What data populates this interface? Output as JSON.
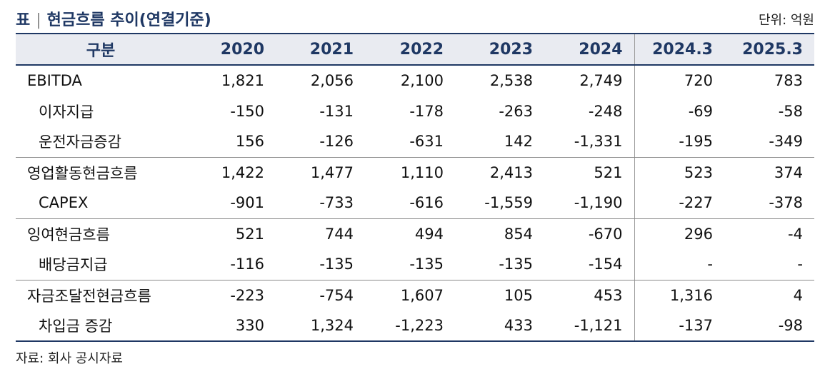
{
  "header": {
    "prefix": "표",
    "separator": "|",
    "title": "현금흐름 추이(연결기준)",
    "unit": "단위: 억원"
  },
  "table": {
    "columns": [
      "구분",
      "2020",
      "2021",
      "2022",
      "2023",
      "2024",
      "2024.3",
      "2025.3"
    ],
    "rows": [
      {
        "label": "EBITDA",
        "values": [
          "1,821",
          "2,056",
          "2,100",
          "2,538",
          "2,749",
          "720",
          "783"
        ]
      },
      {
        "label": "이자지급",
        "values": [
          "-150",
          "-131",
          "-178",
          "-263",
          "-248",
          "-69",
          "-58"
        ]
      },
      {
        "label": "운전자금증감",
        "values": [
          "156",
          "-126",
          "-631",
          "142",
          "-1,331",
          "-195",
          "-349"
        ]
      },
      {
        "label": "영업활동현금흐름",
        "values": [
          "1,422",
          "1,477",
          "1,110",
          "2,413",
          "521",
          "523",
          "374"
        ]
      },
      {
        "label": "CAPEX",
        "values": [
          "-901",
          "-733",
          "-616",
          "-1,559",
          "-1,190",
          "-227",
          "-378"
        ]
      },
      {
        "label": "잉여현금흐름",
        "values": [
          "521",
          "744",
          "494",
          "854",
          "-670",
          "296",
          "-4"
        ]
      },
      {
        "label": "배당금지급",
        "values": [
          "-116",
          "-135",
          "-135",
          "-135",
          "-154",
          "-",
          "-"
        ]
      },
      {
        "label": "자금조달전현금흐름",
        "values": [
          "-223",
          "-754",
          "1,607",
          "105",
          "453",
          "1,316",
          "4"
        ]
      },
      {
        "label": "차입금 증감",
        "values": [
          "330",
          "1,324",
          "-1,223",
          "433",
          "-1,121",
          "-137",
          "-98"
        ]
      }
    ]
  },
  "source": "자료: 회사 공시자료"
}
